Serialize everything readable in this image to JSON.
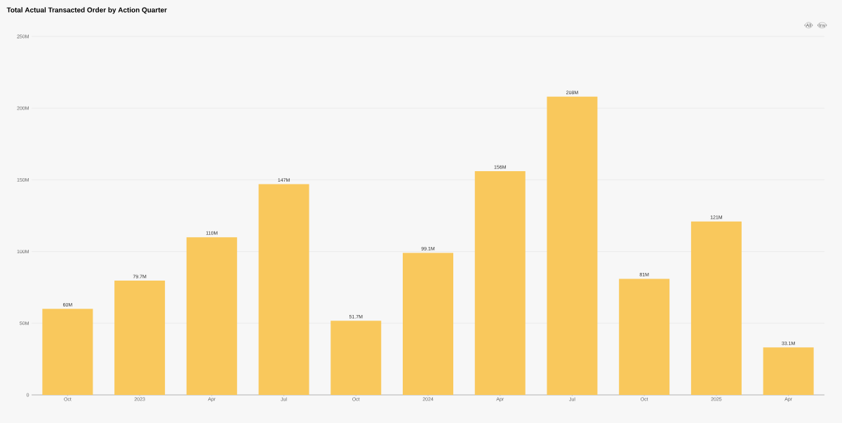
{
  "chart_data": {
    "type": "bar",
    "title": "Total Actual Transacted Order by Action Quarter",
    "categories": [
      "Oct",
      "2023",
      "Apr",
      "Jul",
      "Oct",
      "2024",
      "Apr",
      "Jul",
      "Oct",
      "2025",
      "Apr"
    ],
    "values": [
      60,
      79.7,
      110,
      147,
      51.7,
      99.1,
      156,
      208,
      81,
      121,
      33.1
    ],
    "value_labels": [
      "60M",
      "79.7M",
      "110M",
      "147M",
      "51.7M",
      "99.1M",
      "156M",
      "208M",
      "81M",
      "121M",
      "33.1M"
    ],
    "color": "#f9c85c",
    "ylim": [
      0,
      250
    ],
    "yticks": [
      0,
      {
        "value": 50,
        "label": "50M"
      },
      {
        "value": 100,
        "label": "100M"
      },
      {
        "value": 150,
        "label": "150M"
      },
      {
        "value": 200,
        "label": "200M"
      },
      {
        "value": 250,
        "label": "250M"
      }
    ],
    "grid": "y",
    "annotations": [
      "All",
      "Inv"
    ]
  }
}
